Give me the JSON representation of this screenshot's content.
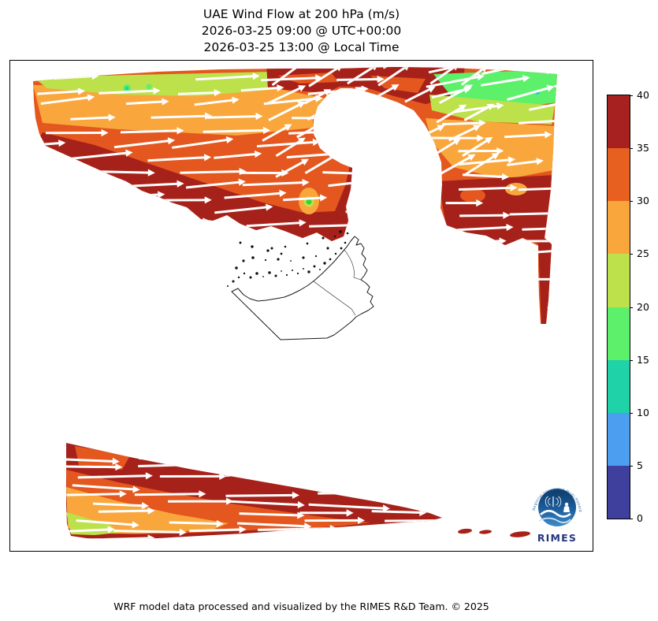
{
  "title": {
    "line1": "UAE Wind Flow at 200 hPa (m/s)",
    "line2": "2026-03-25 09:00 @ UTC+00:00",
    "line3": "2026-03-25 13:00 @ Local Time"
  },
  "footer": {
    "credit": "WRF model data processed and visualized by the RIMES R&D Team. © 2025"
  },
  "logo": {
    "name": "RIMES",
    "ring_text": "Regional Integrated Multi-Hazard Early Warning System",
    "name_color": "#24367E"
  },
  "colorbar": {
    "unit": "m/s",
    "min": 0,
    "max": 40,
    "ticks_top_to_bottom": [
      40,
      35,
      30,
      25,
      20,
      15,
      10,
      5,
      0
    ],
    "segment_colors_top_to_bottom": [
      "#A62120",
      "#E8601F",
      "#F9A63C",
      "#BCE14B",
      "#5DF06A",
      "#1FD2A8",
      "#4B9EF0",
      "#3F3F9D"
    ]
  },
  "chart_data": {
    "type": "heatmap",
    "title": "UAE Wind Flow at 200 hPa (m/s)",
    "variable": "wind speed at 200 hPa with quiver arrows over a UAE map",
    "unit": "m/s",
    "colorbar_ticks": [
      0,
      5,
      10,
      15,
      20,
      25,
      30,
      35,
      40
    ],
    "speed_bin_colors": {
      "0-5": "#3F3F9D",
      "5-10": "#4B9EF0",
      "10-15": "#1FD2A8",
      "15-20": "#5DF06A",
      "20-25": "#BCE14B",
      "25-30": "#F9A63C",
      "30-35": "#E4571E",
      "35-40": "#A62119"
    },
    "flow_direction": "westerly jet; white arrows point west to east, tilted northeast in the north-central strip",
    "regions": [
      {
        "name": "northwest band",
        "location": "upper-left, sloping from left edge toward map center",
        "speed_ms": "20-25 along the top edge increasing to 35-40 at its southern edge",
        "arrow_direction": "east, slightly north of east",
        "local_features": "two small 15-20 green specks near top; one 15-20 minimum ringed by 20-30 near its southeast tail"
      },
      {
        "name": "north-central strip",
        "location": "thin strip along top between the two larger areas, above a white bay-shaped gap",
        "speed_ms": "mostly 35-40 with 30-35 patches",
        "arrow_direction": "northeast"
      },
      {
        "name": "northeast blob",
        "location": "upper-right quadrant",
        "speed_ms": "15-20 at top edge (one 10-15 cyan speck), 20-30 in middle, 35-40 in lower half with a narrow 35-40 tongue extending south",
        "arrow_direction": "east-northeast at top, east below"
      },
      {
        "name": "southern band",
        "location": "bottom of map, thick at west tapering east",
        "speed_ms": "35-40 dominant; 30-35 and 25-30 toward the west end; small 20-25 pocket in the southwest corner; a few detached 35-40 patches east of the tip",
        "arrow_direction": "east"
      },
      {
        "name": "center",
        "location": "around the UAE outline",
        "speed_ms": "no shaded data (masked/white)",
        "arrow_direction": "none"
      }
    ],
    "map_features": [
      "UAE country outline with internal emirate borders",
      "Musandam peninsula squiggle",
      "scattered island dots along the southern Gulf coast"
    ],
    "legend_position": "vertical colorbar on right side",
    "grid": false
  }
}
